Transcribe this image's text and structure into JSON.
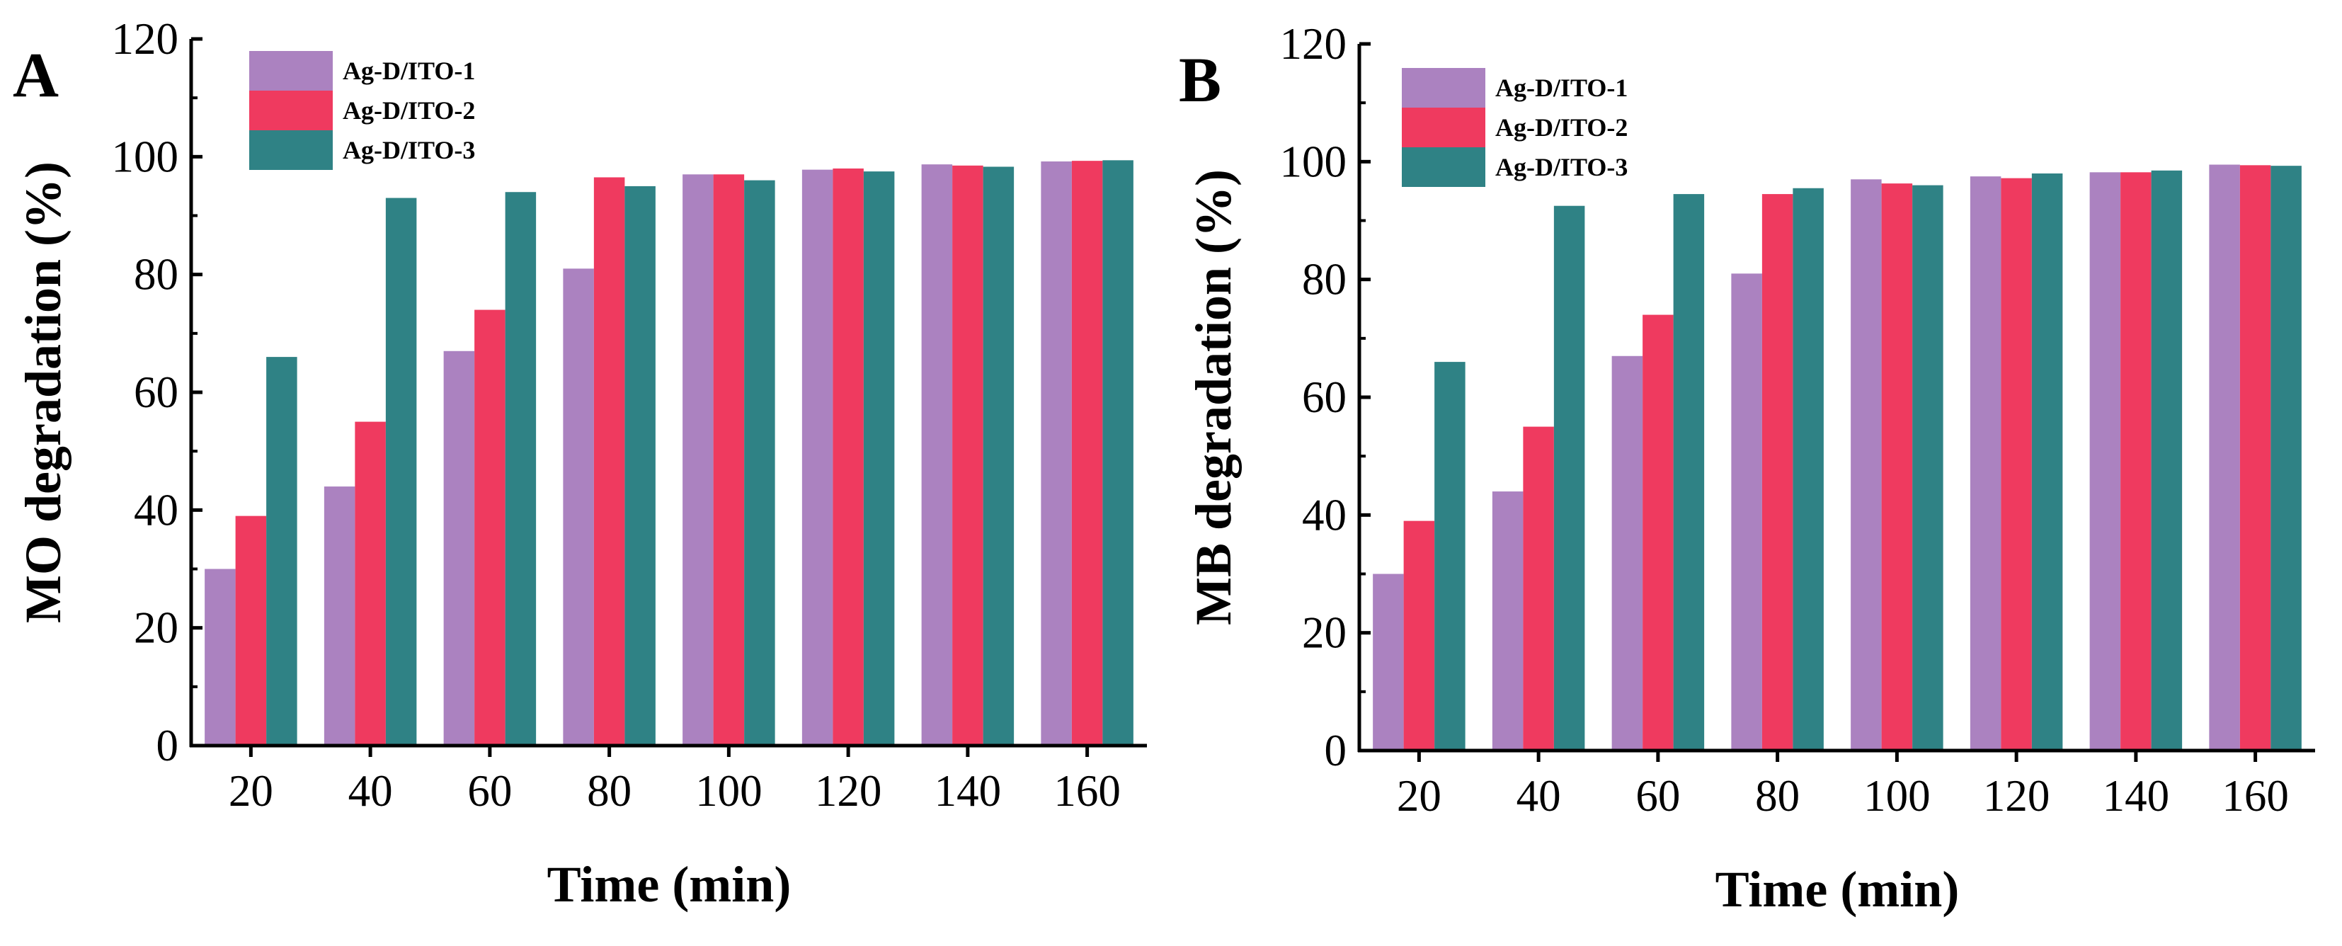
{
  "chart_data": [
    {
      "type": "bar",
      "panel_label": "A",
      "xlabel": "Time (min)",
      "ylabel": "MO degradation (%)",
      "ylim": [
        0,
        120
      ],
      "yticks": [
        0,
        20,
        40,
        60,
        80,
        100,
        120
      ],
      "categories": [
        "20",
        "40",
        "60",
        "80",
        "100",
        "120",
        "140",
        "160"
      ],
      "series": [
        {
          "name": "Ag-D/ITO-1",
          "color": "#ab82c0",
          "values": [
            30,
            44,
            67,
            81,
            97,
            97.8,
            98.7,
            99.2
          ]
        },
        {
          "name": "Ag-D/ITO-2",
          "color": "#ef3a5f",
          "values": [
            39,
            55,
            74,
            96.5,
            97,
            98,
            98.5,
            99.3
          ]
        },
        {
          "name": "Ag-D/ITO-3",
          "color": "#2f8285",
          "values": [
            66,
            93,
            94,
            95,
            96,
            97.5,
            98.3,
            99.4
          ]
        }
      ]
    },
    {
      "type": "bar",
      "panel_label": "B",
      "xlabel": "Time (min)",
      "ylabel": "MB degradation (%)",
      "ylim": [
        0,
        120
      ],
      "yticks": [
        0,
        20,
        40,
        60,
        80,
        100,
        120
      ],
      "categories": [
        "20",
        "40",
        "60",
        "80",
        "100",
        "120",
        "140",
        "160"
      ],
      "series": [
        {
          "name": "Ag-D/ITO-1",
          "color": "#ab82c0",
          "values": [
            30,
            44,
            67,
            81,
            97,
            97.5,
            98.2,
            99.5
          ]
        },
        {
          "name": "Ag-D/ITO-2",
          "color": "#ef3a5f",
          "values": [
            39,
            55,
            74,
            94.5,
            96.3,
            97.2,
            98.2,
            99.4
          ]
        },
        {
          "name": "Ag-D/ITO-3",
          "color": "#2f8285",
          "values": [
            66,
            92.5,
            94.5,
            95.5,
            96,
            98,
            98.5,
            99.3
          ]
        }
      ]
    }
  ]
}
